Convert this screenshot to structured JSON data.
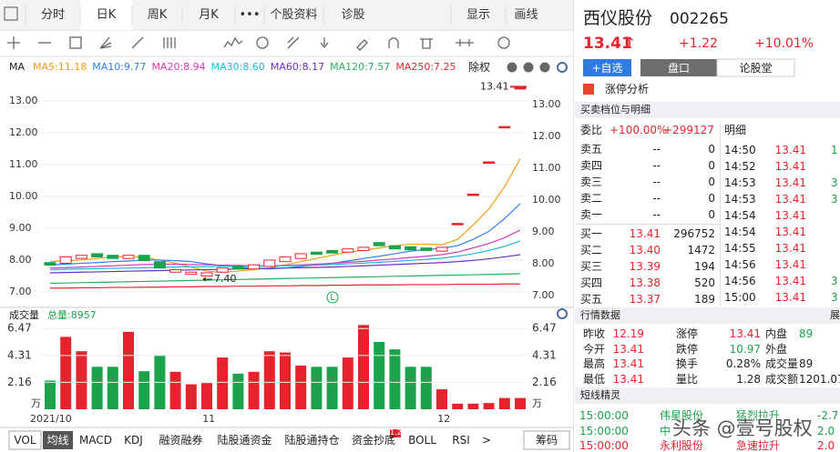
{
  "tabs": [
    "分时",
    "日K",
    "周K",
    "月K",
    "•••",
    "个股资料",
    "诊股",
    "显示",
    "画线"
  ],
  "active_tab": 1,
  "stock": {
    "name": "西仪股份",
    "code": "002265",
    "price": "13.41",
    "arrow": "↑",
    "change": "+1.22",
    "pct": "+10.01%"
  },
  "buttons": [
    "+自选",
    "盘口",
    "论股堂"
  ],
  "limit_up": "涨停分析",
  "book_title": "买卖档位与明细",
  "ratio": {
    "label": "委比",
    "pct": "+100.00%",
    "diff": "+299127"
  },
  "detail_title": "明细",
  "book": [
    [
      "卖五",
      "--",
      "0"
    ],
    [
      "卖四",
      "--",
      "0"
    ],
    [
      "卖三",
      "--",
      "0"
    ],
    [
      "卖二",
      "--",
      "0"
    ],
    [
      "卖一",
      "--",
      "0"
    ],
    [
      "买一",
      "13.41",
      "296752"
    ],
    [
      "买二",
      "13.40",
      "1472"
    ],
    [
      "买三",
      "13.39",
      "194"
    ],
    [
      "买四",
      "13.38",
      "520"
    ],
    [
      "买五",
      "13.37",
      "189"
    ]
  ],
  "detail": [
    [
      "14:50",
      "13.41",
      "1"
    ],
    [
      "14:52",
      "13.41"
    ],
    [
      "14:53",
      "13.41",
      "3"
    ],
    [
      "14:53",
      "13.41",
      "3"
    ],
    [
      "14:54",
      "13.41"
    ],
    [
      "14:54",
      "13.41"
    ],
    [
      "14:55",
      "13.41"
    ],
    [
      "14:56",
      "13.41"
    ],
    [
      "14:56",
      "13.41",
      "3"
    ],
    [
      "15:00",
      "13.41",
      "3"
    ]
  ],
  "market": {
    "title": "行情数据",
    "expand": "展",
    "rows": [
      [
        "昨收",
        "12.19",
        "涨停",
        "13.41",
        "内盘",
        "89"
      ],
      [
        "今开",
        "13.41",
        "跌停",
        "10.97",
        "外盘"
      ],
      [
        "最高",
        "13.41",
        "换手",
        "0.28%",
        "成交量",
        "89"
      ],
      [
        "最低",
        "13.41",
        "量比",
        "1.28",
        "成交额",
        "1201.07"
      ]
    ]
  },
  "sprite": {
    "title": "短线精灵",
    "rows": [
      {
        "time": "15:00:00",
        "name": "伟星股份",
        "event": "猛烈拉升",
        "value": "-2.7"
      },
      {
        "time": "15:00:00",
        "name": "中",
        "value": "2.0"
      },
      {
        "time": "15:00:00",
        "name": "永利股份",
        "event": "急速拉升",
        "value": "2.0"
      }
    ]
  },
  "watermark": "头条 @壹号股权",
  "indicator_tabs": [
    "VOL",
    "均线",
    "MACD",
    "KDJ",
    "融资融券",
    "陆股通资金",
    "陆股通持仓",
    "资金抄底",
    "BOLL",
    "RSI",
    ">"
  ],
  "badge": "1.2",
  "chip": "筹码",
  "chart_data": {
    "type": "candlestick",
    "ma_label": "MA",
    "adjust": "除权",
    "marker": "L",
    "categories": [
      "2021/10",
      null,
      null,
      null,
      null,
      null,
      null,
      null,
      null,
      null,
      null,
      "11",
      null,
      null,
      null,
      null,
      null,
      null,
      null,
      null,
      null,
      null,
      null,
      null,
      null,
      null,
      "12",
      null,
      null,
      null,
      null
    ],
    "open": [
      7.92,
      7.9,
      8.05,
      8.2,
      8.15,
      8.05,
      8.15,
      7.95,
      7.62,
      7.55,
      7.5,
      7.62,
      7.8,
      7.72,
      7.8,
      7.95,
      8.05,
      8.25,
      8.3,
      8.25,
      8.3,
      8.55,
      8.45,
      8.42,
      8.38,
      8.28,
      9.15,
      10.07,
      11.08,
      12.19,
      13.41
    ],
    "close": [
      7.84,
      8.1,
      8.15,
      8.1,
      8.05,
      8.15,
      7.98,
      7.75,
      7.7,
      7.62,
      7.6,
      7.75,
      7.72,
      7.85,
      8.0,
      8.1,
      8.2,
      8.18,
      8.22,
      8.35,
      8.4,
      8.45,
      8.35,
      8.32,
      8.3,
      8.4,
      9.15,
      10.07,
      11.08,
      12.19,
      13.41
    ],
    "last_label": "13.41",
    "low": {
      "value": 7.4,
      "index": 10,
      "label": "7.40"
    },
    "series": [
      {
        "name": "MA5:11.18",
        "color": "#f39c12",
        "values": [
          7.95,
          7.98,
          8.0,
          8.05,
          8.1,
          8.1,
          8.08,
          8.0,
          7.9,
          7.78,
          7.65,
          7.62,
          7.65,
          7.7,
          7.75,
          7.85,
          7.95,
          8.05,
          8.15,
          8.25,
          8.3,
          8.38,
          8.45,
          8.5,
          8.5,
          8.48,
          8.65,
          9.1,
          9.6,
          10.3,
          11.18
        ]
      },
      {
        "name": "MA10:9.77",
        "color": "#2f80ed",
        "values": [
          7.85,
          7.87,
          7.9,
          7.92,
          7.95,
          7.97,
          8.0,
          8.0,
          7.98,
          7.95,
          7.88,
          7.82,
          7.78,
          7.74,
          7.72,
          7.75,
          7.8,
          7.85,
          7.9,
          7.97,
          8.05,
          8.12,
          8.2,
          8.28,
          8.33,
          8.37,
          8.45,
          8.65,
          8.9,
          9.3,
          9.77
        ]
      },
      {
        "name": "MA20:8.94",
        "color": "#d63bb5",
        "values": [
          7.75,
          7.76,
          7.78,
          7.8,
          7.82,
          7.84,
          7.86,
          7.87,
          7.87,
          7.86,
          7.85,
          7.84,
          7.83,
          7.82,
          7.82,
          7.83,
          7.85,
          7.87,
          7.9,
          7.93,
          7.96,
          8.0,
          8.04,
          8.08,
          8.12,
          8.17,
          8.25,
          8.38,
          8.52,
          8.7,
          8.94
        ]
      },
      {
        "name": "MA30:8.60",
        "color": "#1fb8d6",
        "values": [
          7.7,
          7.71,
          7.72,
          7.73,
          7.74,
          7.75,
          7.76,
          7.77,
          7.78,
          7.79,
          7.79,
          7.8,
          7.8,
          7.81,
          7.81,
          7.82,
          7.83,
          7.84,
          7.86,
          7.88,
          7.9,
          7.93,
          7.96,
          7.99,
          8.02,
          8.06,
          8.12,
          8.2,
          8.3,
          8.43,
          8.6
        ]
      },
      {
        "name": "MA60:8.17",
        "color": "#6b2fc4",
        "values": [
          7.6,
          7.61,
          7.62,
          7.63,
          7.64,
          7.65,
          7.66,
          7.67,
          7.68,
          7.69,
          7.7,
          7.71,
          7.72,
          7.73,
          7.74,
          7.75,
          7.76,
          7.77,
          7.78,
          7.8,
          7.82,
          7.84,
          7.86,
          7.88,
          7.9,
          7.92,
          7.95,
          7.99,
          8.04,
          8.1,
          8.17
        ]
      },
      {
        "name": "MA120:7.57",
        "color": "#27ae60",
        "values": [
          7.27,
          7.28,
          7.29,
          7.3,
          7.31,
          7.32,
          7.33,
          7.34,
          7.35,
          7.36,
          7.37,
          7.38,
          7.39,
          7.4,
          7.41,
          7.42,
          7.43,
          7.44,
          7.45,
          7.46,
          7.47,
          7.48,
          7.49,
          7.5,
          7.51,
          7.52,
          7.53,
          7.54,
          7.55,
          7.56,
          7.57
        ]
      },
      {
        "name": "MA250:7.25",
        "color": "#e0282e",
        "values": [
          7.12,
          7.12,
          7.13,
          7.13,
          7.14,
          7.14,
          7.15,
          7.15,
          7.16,
          7.16,
          7.17,
          7.17,
          7.18,
          7.18,
          7.19,
          7.19,
          7.2,
          7.2,
          7.21,
          7.21,
          7.22,
          7.22,
          7.22,
          7.23,
          7.23,
          7.23,
          7.24,
          7.24,
          7.24,
          7.25,
          7.25
        ]
      }
    ],
    "ylim": [
      6.6,
      13.45
    ],
    "yticks": [
      {
        "value": 7,
        "label": "7.00"
      },
      {
        "value": 8,
        "label": "8.00"
      },
      {
        "value": 9,
        "label": "9.00"
      },
      {
        "value": 10,
        "label": "10.00"
      },
      {
        "value": 11,
        "label": "11.00"
      },
      {
        "value": 12,
        "label": "12.00"
      },
      {
        "value": 13,
        "label": "13.00"
      }
    ],
    "up_color": "#e8222c",
    "down_color": "#1aa34a",
    "volume": {
      "title": "成交量",
      "total": "总量:8957",
      "unit": "万",
      "values": [
        2.3,
        5.8,
        4.65,
        3.4,
        3.4,
        6.2,
        3.05,
        4.35,
        3.0,
        2.0,
        2.1,
        4.15,
        2.85,
        3.0,
        4.65,
        4.55,
        3.5,
        3.4,
        3.4,
        4.15,
        6.75,
        5.4,
        4.8,
        3.4,
        3.4,
        1.6,
        0.45,
        0.45,
        0.5,
        0.9,
        0.9
      ],
      "ylim": [
        0,
        6.85
      ],
      "yticks": [
        2.16,
        4.31,
        6.47
      ]
    }
  }
}
